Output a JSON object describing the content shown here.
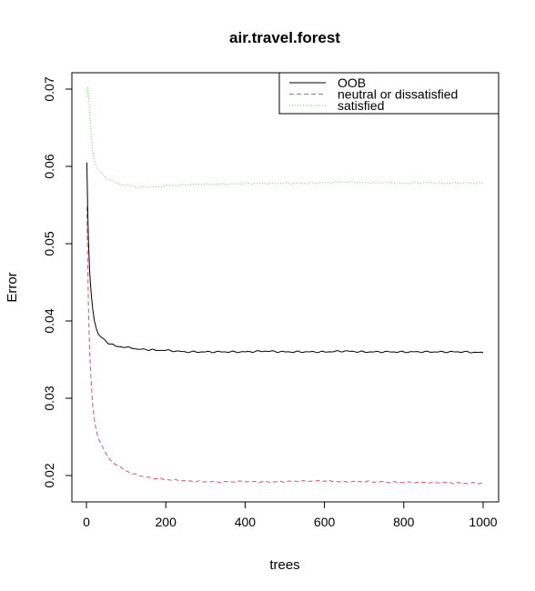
{
  "chart_data": {
    "type": "line",
    "title": "air.travel.forest",
    "xlabel": "trees",
    "ylabel": "Error",
    "xlim": [
      1,
      1000
    ],
    "ylim": [
      0.0172,
      0.0735
    ],
    "x_ticks": [
      0,
      200,
      400,
      600,
      800,
      1000
    ],
    "x_tick_labels": [
      "0",
      "200",
      "400",
      "600",
      "800",
      "1000"
    ],
    "y_ticks": [
      0.02,
      0.03,
      0.04,
      0.05,
      0.06,
      0.07
    ],
    "y_tick_labels": [
      "0.02",
      "0.03",
      "0.04",
      "0.05",
      "0.06",
      "0.07"
    ],
    "grid": false,
    "legend": {
      "position": "top-right",
      "entries": [
        {
          "label": "OOB",
          "color": "#000000",
          "dash": "solid"
        },
        {
          "label": "neutral or dissatisfied",
          "color": "#DF536B",
          "dash": "dashed"
        },
        {
          "label": "satisfied",
          "color": "#61D04F",
          "dash": "dotted"
        }
      ]
    },
    "series": [
      {
        "name": "OOB",
        "color": "#000000",
        "dash": "solid",
        "x": [
          1,
          3,
          5,
          8,
          12,
          16,
          20,
          25,
          30,
          40,
          50,
          60,
          80,
          100,
          120,
          150,
          180,
          200,
          250,
          300,
          350,
          400,
          450,
          500,
          550,
          600,
          650,
          700,
          750,
          800,
          850,
          900,
          950,
          1000
        ],
        "y": [
          0.0605,
          0.055,
          0.0505,
          0.0465,
          0.0435,
          0.0415,
          0.04,
          0.039,
          0.0383,
          0.0378,
          0.0373,
          0.037,
          0.0367,
          0.0366,
          0.0364,
          0.0363,
          0.0362,
          0.0362,
          0.036,
          0.036,
          0.036,
          0.036,
          0.0361,
          0.036,
          0.036,
          0.036,
          0.0361,
          0.036,
          0.036,
          0.036,
          0.036,
          0.036,
          0.036,
          0.0359
        ]
      },
      {
        "name": "neutral or dissatisfied",
        "color": "#DF536B",
        "dash": "dashed",
        "x": [
          1,
          3,
          5,
          8,
          12,
          16,
          20,
          25,
          30,
          40,
          50,
          60,
          80,
          100,
          120,
          150,
          180,
          200,
          250,
          300,
          350,
          400,
          450,
          500,
          550,
          600,
          650,
          700,
          750,
          800,
          850,
          900,
          950,
          1000
        ],
        "y": [
          0.0548,
          0.048,
          0.042,
          0.036,
          0.032,
          0.029,
          0.0272,
          0.0258,
          0.0248,
          0.0238,
          0.0228,
          0.022,
          0.0212,
          0.0206,
          0.0202,
          0.0198,
          0.0196,
          0.0195,
          0.0193,
          0.0192,
          0.0192,
          0.0192,
          0.0192,
          0.0192,
          0.0193,
          0.0193,
          0.0192,
          0.0192,
          0.0192,
          0.0191,
          0.0191,
          0.0191,
          0.019,
          0.019
        ]
      },
      {
        "name": "satisfied",
        "color": "#61D04F",
        "dash": "dotted",
        "x": [
          1,
          3,
          5,
          8,
          12,
          16,
          20,
          25,
          30,
          40,
          50,
          60,
          80,
          100,
          120,
          150,
          180,
          200,
          250,
          300,
          350,
          400,
          450,
          500,
          550,
          600,
          650,
          700,
          750,
          800,
          850,
          900,
          950,
          1000
        ],
        "y": [
          0.069,
          0.0703,
          0.0695,
          0.067,
          0.064,
          0.062,
          0.0608,
          0.06,
          0.0595,
          0.059,
          0.0585,
          0.0582,
          0.0578,
          0.0576,
          0.0574,
          0.0573,
          0.0574,
          0.0575,
          0.0576,
          0.0577,
          0.0577,
          0.0578,
          0.0578,
          0.0578,
          0.0578,
          0.0579,
          0.058,
          0.0579,
          0.0579,
          0.0578,
          0.0579,
          0.0578,
          0.0579,
          0.0578
        ]
      }
    ]
  }
}
